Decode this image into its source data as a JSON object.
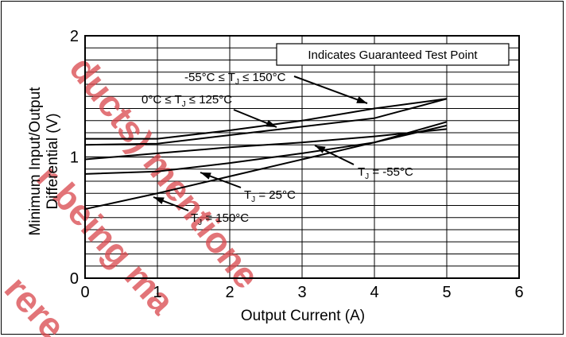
{
  "chart_data": {
    "type": "line",
    "xlabel": "Output Current (A)",
    "ylabel": [
      "Minimum Input/Output",
      "Differential (V)"
    ],
    "xlim": [
      0,
      6
    ],
    "ylim": [
      0,
      2
    ],
    "x_ticks": [
      "0",
      "1",
      "2",
      "3",
      "4",
      "5",
      "6"
    ],
    "y_ticks": [
      "0",
      "1",
      "2"
    ],
    "grid": "horizontal-minor-and-vertical-major",
    "legend_box": "Indicates Guaranteed Test Point",
    "series": [
      {
        "name": "-55°C ≤ TJ ≤ 150°C",
        "x": [
          0,
          1,
          2,
          3,
          4,
          5
        ],
        "y": [
          1.15,
          1.15,
          1.22,
          1.3,
          1.4,
          1.48
        ]
      },
      {
        "name": "0°C ≤ TJ ≤ 125°C",
        "x": [
          0,
          1,
          2,
          3,
          4,
          5
        ],
        "y": [
          1.1,
          1.11,
          1.18,
          1.25,
          1.32,
          1.48
        ]
      },
      {
        "name": "TJ = -55°C",
        "x": [
          0,
          1,
          2,
          3,
          4,
          5
        ],
        "y": [
          0.98,
          1.03,
          1.08,
          1.12,
          1.17,
          1.23
        ]
      },
      {
        "name": "TJ = 25°C",
        "x": [
          0,
          1,
          2,
          3,
          4,
          5
        ],
        "y": [
          0.86,
          0.88,
          0.95,
          1.03,
          1.12,
          1.26
        ]
      },
      {
        "name": "TJ = 150°C",
        "x": [
          0,
          1,
          2,
          3,
          4,
          5
        ],
        "y": [
          0.57,
          0.7,
          0.84,
          0.98,
          1.12,
          1.29
        ]
      }
    ],
    "annotations": [
      {
        "pre": "-55°C ≤ T",
        "sub": "J",
        "post": " ≤ 150°C",
        "series": 0
      },
      {
        "pre": "0°C ≤ T",
        "sub": "J",
        "post": " ≤ 125°C",
        "series": 1
      },
      {
        "pre": "T",
        "sub": "J",
        "post": " = -55°C",
        "series": 2
      },
      {
        "pre": "T",
        "sub": "J",
        "post": " = 25°C",
        "series": 3
      },
      {
        "pre": "T",
        "sub": "J",
        "post": " = 150°C",
        "series": 4
      }
    ]
  },
  "watermark": {
    "lines": [
      "ducts) mentione",
      "r being ma",
      "rere"
    ],
    "color": "#d9464b"
  }
}
